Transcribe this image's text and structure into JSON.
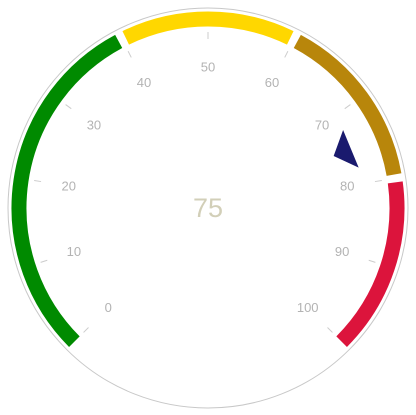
{
  "chart_data": {
    "type": "gauge",
    "value": 75,
    "value_text": "75",
    "min": 0,
    "max": 100,
    "major_ticks": [
      0,
      10,
      20,
      30,
      40,
      50,
      60,
      70,
      80,
      90,
      100
    ],
    "tick_labels": [
      "0",
      "10",
      "20",
      "30",
      "40",
      "50",
      "60",
      "70",
      "80",
      "90",
      "100"
    ],
    "bands": [
      {
        "from": 0,
        "to": 40,
        "color": "#008a00"
      },
      {
        "from": 40,
        "to": 60,
        "color": "#ffd700"
      },
      {
        "from": 60,
        "to": 80,
        "color": "#b8860b"
      },
      {
        "from": 80,
        "to": 100,
        "color": "#dc143c"
      }
    ],
    "needle_color": "#1a1a6e",
    "tick_color": "#cccccc",
    "label_color": "#b3b3b3",
    "value_color": "#d2cfb8",
    "rim_color": "#c8c8c8"
  }
}
